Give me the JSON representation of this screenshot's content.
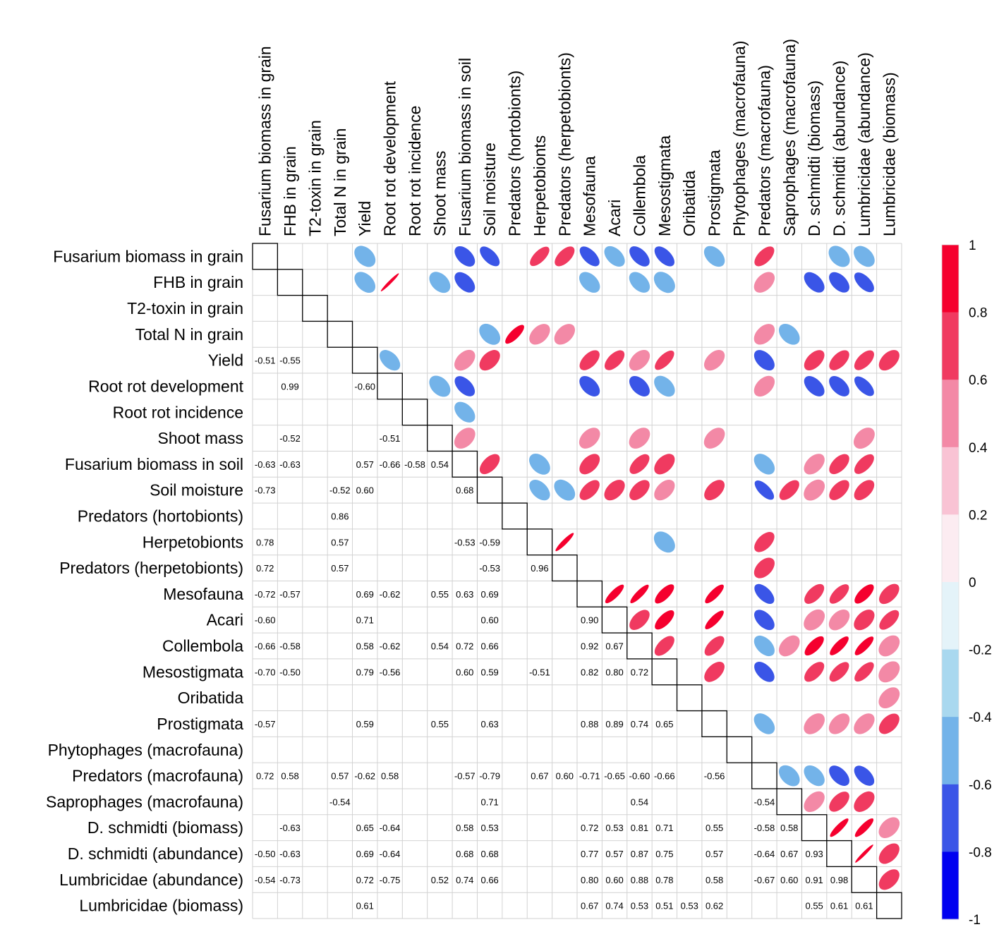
{
  "chart_data": {
    "type": "heatmap",
    "title": "",
    "variables": [
      "Fusarium biomass in grain",
      "FHB in grain",
      "T2-toxin in grain",
      "Total N in grain",
      "Yield",
      "Root rot development",
      "Root rot incidence",
      "Shoot mass",
      "Fusarium biomass in soil",
      "Soil moisture",
      "Predators (hortobionts)",
      "Herpetobionts",
      "Predators (herpetobionts)",
      "Mesofauna",
      "Acari",
      "Collembola",
      "Mesostigmata",
      "Oribatida",
      "Prostigmata",
      "Phytophages (macrofauna)",
      "Predators (macrofauna)",
      "Saprophages (macrofauna)",
      "D. schmidti (biomass)",
      "D. schmidti (abundance)",
      "Lumbricidae (abundance)",
      "Lumbricidae (biomass)"
    ],
    "lower_labels": [
      [
        4,
        0,
        "-0.51"
      ],
      [
        4,
        1,
        "-0.55"
      ],
      [
        5,
        1,
        "0.99"
      ],
      [
        5,
        4,
        "-0.60"
      ],
      [
        7,
        1,
        "-0.52"
      ],
      [
        7,
        5,
        "-0.51"
      ],
      [
        8,
        0,
        "-0.63"
      ],
      [
        8,
        1,
        "-0.63"
      ],
      [
        8,
        4,
        "0.57"
      ],
      [
        8,
        5,
        "-0.66"
      ],
      [
        8,
        6,
        "-0.58"
      ],
      [
        8,
        7,
        "0.54"
      ],
      [
        9,
        0,
        "-0.73"
      ],
      [
        9,
        3,
        "-0.52"
      ],
      [
        9,
        4,
        "0.60"
      ],
      [
        9,
        8,
        "0.68"
      ],
      [
        10,
        3,
        "0.86"
      ],
      [
        11,
        0,
        "0.78"
      ],
      [
        11,
        3,
        "0.57"
      ],
      [
        11,
        8,
        "-0.53"
      ],
      [
        11,
        9,
        "-0.59"
      ],
      [
        12,
        0,
        "0.72"
      ],
      [
        12,
        3,
        "0.57"
      ],
      [
        12,
        9,
        "-0.53"
      ],
      [
        12,
        11,
        "0.96"
      ],
      [
        13,
        0,
        "-0.72"
      ],
      [
        13,
        1,
        "-0.57"
      ],
      [
        13,
        4,
        "0.69"
      ],
      [
        13,
        5,
        "-0.62"
      ],
      [
        13,
        7,
        "0.55"
      ],
      [
        13,
        8,
        "0.63"
      ],
      [
        13,
        9,
        "0.69"
      ],
      [
        14,
        0,
        "-0.60"
      ],
      [
        14,
        4,
        "0.71"
      ],
      [
        14,
        9,
        "0.60"
      ],
      [
        14,
        13,
        "0.90"
      ],
      [
        15,
        0,
        "-0.66"
      ],
      [
        15,
        1,
        "-0.58"
      ],
      [
        15,
        4,
        "0.58"
      ],
      [
        15,
        5,
        "-0.62"
      ],
      [
        15,
        7,
        "0.54"
      ],
      [
        15,
        8,
        "0.72"
      ],
      [
        15,
        9,
        "0.66"
      ],
      [
        15,
        13,
        "0.92"
      ],
      [
        15,
        14,
        "0.67"
      ],
      [
        16,
        0,
        "-0.70"
      ],
      [
        16,
        1,
        "-0.50"
      ],
      [
        16,
        4,
        "0.79"
      ],
      [
        16,
        5,
        "-0.56"
      ],
      [
        16,
        8,
        "0.60"
      ],
      [
        16,
        9,
        "0.59"
      ],
      [
        16,
        11,
        "-0.51"
      ],
      [
        16,
        13,
        "0.82"
      ],
      [
        16,
        14,
        "0.80"
      ],
      [
        16,
        15,
        "0.72"
      ],
      [
        18,
        0,
        "-0.57"
      ],
      [
        18,
        4,
        "0.59"
      ],
      [
        18,
        7,
        "0.55"
      ],
      [
        18,
        9,
        "0.63"
      ],
      [
        18,
        13,
        "0.88"
      ],
      [
        18,
        14,
        "0.89"
      ],
      [
        18,
        15,
        "0.74"
      ],
      [
        18,
        16,
        "0.65"
      ],
      [
        20,
        0,
        "0.72"
      ],
      [
        20,
        1,
        "0.58"
      ],
      [
        20,
        3,
        "0.57"
      ],
      [
        20,
        4,
        "-0.62"
      ],
      [
        20,
        5,
        "0.58"
      ],
      [
        20,
        8,
        "-0.57"
      ],
      [
        20,
        9,
        "-0.79"
      ],
      [
        20,
        11,
        "0.67"
      ],
      [
        20,
        12,
        "0.60"
      ],
      [
        20,
        13,
        "-0.71"
      ],
      [
        20,
        14,
        "-0.65"
      ],
      [
        20,
        15,
        "-0.60"
      ],
      [
        20,
        16,
        "-0.66"
      ],
      [
        20,
        18,
        "-0.56"
      ],
      [
        21,
        3,
        "-0.54"
      ],
      [
        21,
        9,
        "0.71"
      ],
      [
        21,
        15,
        "0.54"
      ],
      [
        21,
        20,
        "-0.54"
      ],
      [
        22,
        1,
        "-0.63"
      ],
      [
        22,
        4,
        "0.65"
      ],
      [
        22,
        5,
        "-0.64"
      ],
      [
        22,
        8,
        "0.58"
      ],
      [
        22,
        9,
        "0.53"
      ],
      [
        22,
        13,
        "0.72"
      ],
      [
        22,
        14,
        "0.53"
      ],
      [
        22,
        15,
        "0.81"
      ],
      [
        22,
        16,
        "0.71"
      ],
      [
        22,
        18,
        "0.55"
      ],
      [
        22,
        20,
        "-0.58"
      ],
      [
        22,
        21,
        "0.58"
      ],
      [
        23,
        0,
        "-0.50"
      ],
      [
        23,
        1,
        "-0.63"
      ],
      [
        23,
        4,
        "0.69"
      ],
      [
        23,
        5,
        "-0.64"
      ],
      [
        23,
        8,
        "0.68"
      ],
      [
        23,
        9,
        "0.68"
      ],
      [
        23,
        13,
        "0.77"
      ],
      [
        23,
        14,
        "0.57"
      ],
      [
        23,
        15,
        "0.87"
      ],
      [
        23,
        16,
        "0.75"
      ],
      [
        23,
        18,
        "0.57"
      ],
      [
        23,
        20,
        "-0.64"
      ],
      [
        23,
        21,
        "0.67"
      ],
      [
        23,
        22,
        "0.93"
      ],
      [
        24,
        0,
        "-0.54"
      ],
      [
        24,
        1,
        "-0.73"
      ],
      [
        24,
        4,
        "0.72"
      ],
      [
        24,
        5,
        "-0.75"
      ],
      [
        24,
        7,
        "0.52"
      ],
      [
        24,
        8,
        "0.74"
      ],
      [
        24,
        9,
        "0.66"
      ],
      [
        24,
        13,
        "0.80"
      ],
      [
        24,
        14,
        "0.60"
      ],
      [
        24,
        15,
        "0.88"
      ],
      [
        24,
        16,
        "0.78"
      ],
      [
        24,
        18,
        "0.58"
      ],
      [
        24,
        20,
        "-0.67"
      ],
      [
        24,
        21,
        "0.60"
      ],
      [
        24,
        22,
        "0.91"
      ],
      [
        24,
        23,
        "0.98"
      ],
      [
        25,
        4,
        "0.61"
      ],
      [
        25,
        13,
        "0.67"
      ],
      [
        25,
        14,
        "0.74"
      ],
      [
        25,
        15,
        "0.53"
      ],
      [
        25,
        16,
        "0.51"
      ],
      [
        25,
        17,
        "0.53"
      ],
      [
        25,
        18,
        "0.62"
      ],
      [
        25,
        22,
        "0.55"
      ],
      [
        25,
        23,
        "0.61"
      ],
      [
        25,
        24,
        "0.61"
      ]
    ],
    "upper_estimated": [
      [
        0,
        4,
        -0.51
      ],
      [
        0,
        8,
        -0.63
      ],
      [
        0,
        9,
        -0.73
      ],
      [
        0,
        11,
        0.78
      ],
      [
        0,
        12,
        0.72
      ],
      [
        0,
        13,
        -0.72
      ],
      [
        0,
        14,
        -0.6
      ],
      [
        0,
        15,
        -0.66
      ],
      [
        0,
        16,
        -0.7
      ],
      [
        0,
        18,
        -0.57
      ],
      [
        0,
        20,
        0.72
      ],
      [
        0,
        23,
        -0.5
      ],
      [
        0,
        24,
        -0.54
      ],
      [
        1,
        4,
        -0.55
      ],
      [
        1,
        5,
        0.99
      ],
      [
        1,
        7,
        -0.52
      ],
      [
        1,
        8,
        -0.63
      ],
      [
        1,
        13,
        -0.57
      ],
      [
        1,
        15,
        -0.58
      ],
      [
        1,
        16,
        -0.5
      ],
      [
        1,
        20,
        0.58
      ],
      [
        1,
        22,
        -0.63
      ],
      [
        1,
        23,
        -0.63
      ],
      [
        1,
        24,
        -0.73
      ],
      [
        3,
        9,
        -0.52
      ],
      [
        3,
        10,
        0.86
      ],
      [
        3,
        11,
        0.57
      ],
      [
        3,
        12,
        0.57
      ],
      [
        3,
        20,
        0.57
      ],
      [
        3,
        21,
        -0.54
      ],
      [
        4,
        5,
        -0.6
      ],
      [
        4,
        8,
        0.57
      ],
      [
        4,
        9,
        0.6
      ],
      [
        4,
        13,
        0.69
      ],
      [
        4,
        14,
        0.71
      ],
      [
        4,
        15,
        0.58
      ],
      [
        4,
        16,
        0.79
      ],
      [
        4,
        18,
        0.59
      ],
      [
        4,
        20,
        -0.62
      ],
      [
        4,
        22,
        0.65
      ],
      [
        4,
        23,
        0.69
      ],
      [
        4,
        24,
        0.72
      ],
      [
        4,
        25,
        0.61
      ],
      [
        5,
        7,
        -0.51
      ],
      [
        5,
        8,
        -0.66
      ],
      [
        5,
        13,
        -0.62
      ],
      [
        5,
        15,
        -0.62
      ],
      [
        5,
        16,
        -0.56
      ],
      [
        5,
        20,
        0.58
      ],
      [
        5,
        22,
        -0.64
      ],
      [
        5,
        23,
        -0.64
      ],
      [
        5,
        24,
        -0.75
      ],
      [
        6,
        8,
        -0.58
      ],
      [
        7,
        8,
        0.54
      ],
      [
        7,
        13,
        0.55
      ],
      [
        7,
        15,
        0.54
      ],
      [
        7,
        18,
        0.55
      ],
      [
        7,
        24,
        0.52
      ],
      [
        8,
        9,
        0.68
      ],
      [
        8,
        11,
        -0.53
      ],
      [
        8,
        13,
        0.63
      ],
      [
        8,
        15,
        0.72
      ],
      [
        8,
        16,
        0.6
      ],
      [
        8,
        20,
        -0.57
      ],
      [
        8,
        22,
        0.58
      ],
      [
        8,
        23,
        0.68
      ],
      [
        8,
        24,
        0.74
      ],
      [
        9,
        11,
        -0.59
      ],
      [
        9,
        12,
        -0.53
      ],
      [
        9,
        13,
        0.69
      ],
      [
        9,
        14,
        0.6
      ],
      [
        9,
        15,
        0.66
      ],
      [
        9,
        16,
        0.59
      ],
      [
        9,
        18,
        0.63
      ],
      [
        9,
        20,
        -0.79
      ],
      [
        9,
        21,
        0.71
      ],
      [
        9,
        22,
        0.53
      ],
      [
        9,
        23,
        0.68
      ],
      [
        9,
        24,
        0.66
      ],
      [
        11,
        12,
        0.96
      ],
      [
        11,
        16,
        -0.51
      ],
      [
        11,
        20,
        0.67
      ],
      [
        12,
        20,
        0.6
      ],
      [
        13,
        14,
        0.9
      ],
      [
        13,
        15,
        0.92
      ],
      [
        13,
        16,
        0.82
      ],
      [
        13,
        18,
        0.88
      ],
      [
        13,
        20,
        -0.71
      ],
      [
        13,
        22,
        0.72
      ],
      [
        13,
        23,
        0.77
      ],
      [
        13,
        24,
        0.8
      ],
      [
        13,
        25,
        0.67
      ],
      [
        14,
        15,
        0.67
      ],
      [
        14,
        16,
        0.8
      ],
      [
        14,
        18,
        0.89
      ],
      [
        14,
        20,
        -0.65
      ],
      [
        14,
        22,
        0.53
      ],
      [
        14,
        23,
        0.57
      ],
      [
        14,
        24,
        0.6
      ],
      [
        14,
        25,
        0.74
      ],
      [
        15,
        16,
        0.72
      ],
      [
        15,
        18,
        0.74
      ],
      [
        15,
        20,
        -0.6
      ],
      [
        15,
        21,
        0.54
      ],
      [
        15,
        22,
        0.81
      ],
      [
        15,
        23,
        0.87
      ],
      [
        15,
        24,
        0.88
      ],
      [
        15,
        25,
        0.53
      ],
      [
        16,
        18,
        0.65
      ],
      [
        16,
        20,
        -0.66
      ],
      [
        16,
        22,
        0.71
      ],
      [
        16,
        23,
        0.75
      ],
      [
        16,
        24,
        0.78
      ],
      [
        16,
        25,
        0.51
      ],
      [
        17,
        25,
        0.53
      ],
      [
        18,
        20,
        -0.56
      ],
      [
        18,
        22,
        0.55
      ],
      [
        18,
        23,
        0.57
      ],
      [
        18,
        24,
        0.58
      ],
      [
        18,
        25,
        0.62
      ],
      [
        20,
        21,
        -0.54
      ],
      [
        20,
        22,
        -0.58
      ],
      [
        20,
        23,
        -0.64
      ],
      [
        20,
        24,
        -0.67
      ],
      [
        21,
        22,
        0.58
      ],
      [
        21,
        23,
        0.67
      ],
      [
        21,
        24,
        0.6
      ],
      [
        22,
        23,
        0.93
      ],
      [
        22,
        24,
        0.91
      ],
      [
        22,
        25,
        0.55
      ],
      [
        23,
        24,
        0.98
      ],
      [
        23,
        25,
        0.61
      ],
      [
        24,
        25,
        0.61
      ]
    ],
    "colorbar": {
      "ticks": [
        "1",
        "0.8",
        "0.6",
        "0.4",
        "0.2",
        "0",
        "-0.2",
        "-0.4",
        "-0.6",
        "-0.8",
        "-1"
      ],
      "bins": [
        {
          "from": 0.8,
          "to": 1.0,
          "color": "#f5002e"
        },
        {
          "from": 0.6,
          "to": 0.8,
          "color": "#f03a60"
        },
        {
          "from": 0.4,
          "to": 0.6,
          "color": "#f389a6"
        },
        {
          "from": 0.2,
          "to": 0.4,
          "color": "#f9c3d4"
        },
        {
          "from": 0.0,
          "to": 0.2,
          "color": "#fcecf1"
        },
        {
          "from": -0.2,
          "to": 0.0,
          "color": "#e4f3f9"
        },
        {
          "from": -0.4,
          "to": -0.2,
          "color": "#a9d8ef"
        },
        {
          "from": -0.6,
          "to": -0.4,
          "color": "#73b3e9"
        },
        {
          "from": -0.8,
          "to": -0.6,
          "color": "#3a55e7"
        },
        {
          "from": -1.0,
          "to": -0.8,
          "color": "#0000f0"
        }
      ]
    },
    "range": [
      -1,
      1
    ],
    "grid": true,
    "legend": "right"
  }
}
